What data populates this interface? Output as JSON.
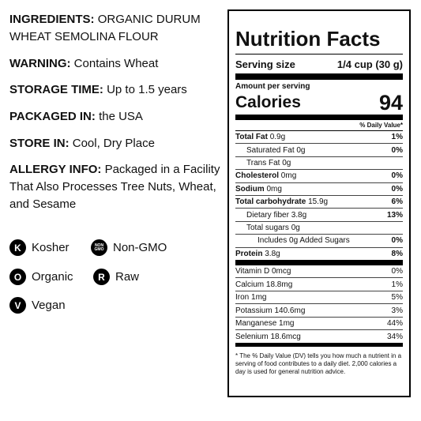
{
  "info": [
    {
      "label": "INGREDIENTS:",
      "value": "ORGANIC DURUM WHEAT SEMOLINA FLOUR"
    },
    {
      "label": "WARNING:",
      "value": "Contains Wheat"
    },
    {
      "label": "STORAGE TIME:",
      "value": "Up to 1.5 years"
    },
    {
      "label": "PACKAGED IN:",
      "value": "the USA"
    },
    {
      "label": "STORE IN:",
      "value": "Cool, Dry Place"
    },
    {
      "label": "ALLERGY INFO:",
      "value": "Packaged in a Facility That Also Processes Tree Nuts, Wheat, and Sesame"
    }
  ],
  "badges": [
    {
      "icon": "K",
      "label": "Kosher"
    },
    {
      "icon": "NON GMO",
      "label": "Non-GMO"
    },
    {
      "icon": "O",
      "label": "Organic"
    },
    {
      "icon": "R",
      "label": "Raw"
    },
    {
      "icon": "V",
      "label": "Vegan"
    }
  ],
  "nutrition": {
    "title": "Nutrition Facts",
    "serving_size_label": "Serving size",
    "serving_size": "1/4 cup (30 g)",
    "amount_per_serving": "Amount per serving",
    "calories_label": "Calories",
    "calories": 94,
    "dv_header": "% Daily Value*",
    "nutrients": [
      {
        "name": "Total Fat",
        "amount": "0.9g",
        "dv": "1%",
        "bold": true,
        "indent": 0
      },
      {
        "name": "Saturated Fat",
        "amount": "0g",
        "dv": "0%",
        "bold": false,
        "indent": 1
      },
      {
        "name": "Trans Fat",
        "amount": "0g",
        "bold": false,
        "indent": 1
      },
      {
        "name": "Cholesterol",
        "amount": "0mg",
        "dv": "0%",
        "bold": true,
        "indent": 0
      },
      {
        "name": "Sodium",
        "amount": "0mg",
        "dv": "0%",
        "bold": true,
        "indent": 0
      },
      {
        "name": "Total carbohydrate",
        "amount": "15.9g",
        "dv": "6%",
        "bold": true,
        "indent": 0
      },
      {
        "name": "Dietary fiber",
        "amount": "3.8g",
        "dv": "13%",
        "bold": false,
        "indent": 1
      },
      {
        "name": "Total sugars",
        "amount": "0g",
        "bold": false,
        "indent": 1
      },
      {
        "name": "Includes 0g Added Sugars",
        "dv": "0%",
        "bold": false,
        "indent": 2
      },
      {
        "name": "Protein",
        "amount": "3.8g",
        "dv": "8%",
        "bold": true,
        "indent": 0
      }
    ],
    "micros": [
      {
        "name": "Vitamin D 0mcg",
        "dv": "0%"
      },
      {
        "name": "Calcium 18.8mg",
        "dv": "1%"
      },
      {
        "name": "Iron 1mg",
        "dv": "5%"
      },
      {
        "name": "Potassium 140.6mg",
        "dv": "3%"
      },
      {
        "name": "Manganese 1mg",
        "dv": "44%"
      },
      {
        "name": "Selenium 18.6mcg",
        "dv": "34%"
      }
    ],
    "footnote": "* The % Daily Value (DV) tells you how much a nutrient in a serving of food contributes to a daily diet. 2,000 calories a day is used for general nutrition advice."
  }
}
